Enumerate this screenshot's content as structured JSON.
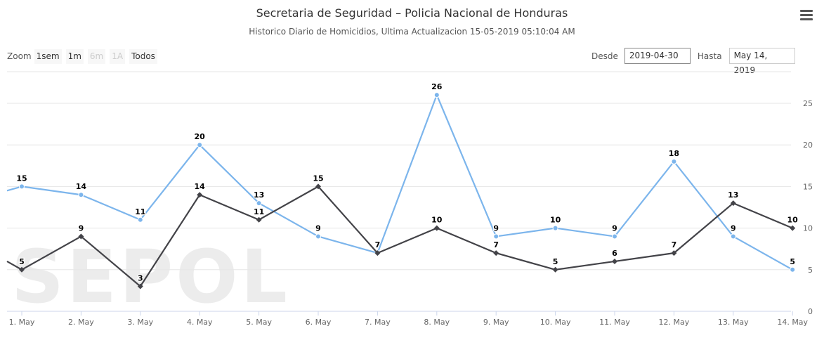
{
  "header": {
    "title": "Secretaria de Seguridad – Policia Nacional de Honduras",
    "subtitle": "Historico Diario de Homicidios, Ultima Actualizacion 15-05-2019 05:10:04 AM"
  },
  "toolbar": {
    "zoom_label": "Zoom",
    "zoom_buttons": [
      {
        "label": "1sem",
        "enabled": true
      },
      {
        "label": "1m",
        "enabled": true
      },
      {
        "label": "6m",
        "enabled": false
      },
      {
        "label": "1A",
        "enabled": false
      },
      {
        "label": "Todos",
        "enabled": true
      }
    ],
    "from_label": "Desde",
    "from_value": "2019-04-30",
    "to_label": "Hasta",
    "to_value": "May 14, 2019"
  },
  "watermark": "SEPOL",
  "chart_data": {
    "type": "line",
    "title": "Secretaria de Seguridad – Policia Nacional de Honduras",
    "subtitle": "Historico Diario de Homicidios, Ultima Actualizacion 15-05-2019 05:10:04 AM",
    "categories": [
      "1. May",
      "2. May",
      "3. May",
      "4. May",
      "5. May",
      "6. May",
      "7. May",
      "8. May",
      "9. May",
      "10. May",
      "11. May",
      "12. May",
      "13. May",
      "14. May"
    ],
    "series": [
      {
        "color": "#7cb5ec",
        "values": [
          15,
          14,
          11,
          20,
          13,
          9,
          7,
          26,
          9,
          10,
          9,
          18,
          9,
          5
        ],
        "left_value": 14.5
      },
      {
        "color": "#434348",
        "values": [
          5,
          9,
          3,
          14,
          11,
          15,
          7,
          10,
          7,
          5,
          6,
          7,
          13,
          10
        ],
        "left_value": 6
      }
    ],
    "yticks": [
      0,
      5,
      10,
      15,
      20,
      25
    ],
    "ylim": [
      0,
      28.8
    ],
    "y_axis_side": "right",
    "grid": true,
    "legend": "none"
  }
}
